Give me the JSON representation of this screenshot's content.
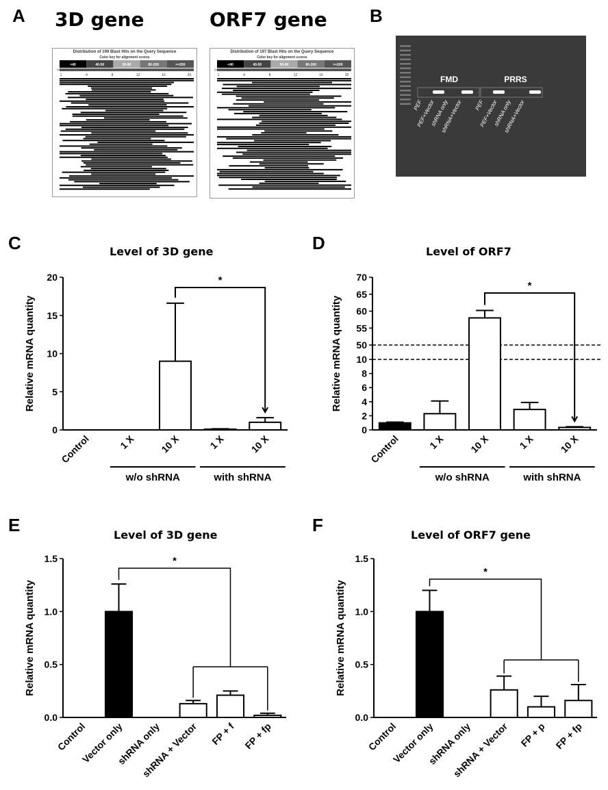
{
  "panels": {
    "A": {
      "letter": "A",
      "titles": [
        "3D gene",
        "ORF7 gene"
      ],
      "blast": [
        {
          "title": "Distribution of 199 Blast Hits on the Query Sequence",
          "key_label": "Color key for alignment scores",
          "score_bins": [
            "<40",
            "40-50",
            "50-80",
            "80-200",
            ">=200"
          ],
          "query_label": "Query",
          "axis_ticks": [
            "1",
            "4",
            "8",
            "12",
            "16",
            "20"
          ]
        },
        {
          "title": "Distribution of 197 Blast Hits on the Query Sequence",
          "key_label": "Color key for alignment scores",
          "score_bins": [
            "<40",
            "40-50",
            "50-80",
            "80-200",
            ">=200"
          ],
          "query_label": "Query",
          "axis_ticks": [
            "1",
            "4",
            "8",
            "12",
            "16",
            "20"
          ]
        }
      ]
    },
    "B": {
      "letter": "B",
      "group_labels": [
        "FMD",
        "PRRS"
      ],
      "lane_labels": [
        "PEF",
        "PEF+Vector",
        "shRNA only",
        "shRNA+Vector",
        "PEF",
        "PEF+Vector",
        "shRNA only",
        "shRNA+Vector"
      ]
    },
    "C": {
      "letter": "C"
    },
    "D": {
      "letter": "D"
    },
    "E": {
      "letter": "E"
    },
    "F": {
      "letter": "F"
    }
  },
  "chart_data": [
    {
      "id": "C",
      "type": "bar",
      "title": "Level of 3D gene",
      "ylabel": "Relative mRNA quantity",
      "categories": [
        "Control",
        "1 X",
        "10 X",
        "1 X",
        "10 X"
      ],
      "values": [
        0,
        0,
        9.0,
        0.1,
        1.0
      ],
      "errors": [
        0,
        0,
        7.6,
        0.05,
        0.6
      ],
      "fills": [
        "#ffffff",
        "#ffffff",
        "#ffffff",
        "#ffffff",
        "#ffffff"
      ],
      "ylim": [
        0,
        20
      ],
      "yticks": [
        "0",
        "5",
        "10",
        "15",
        "20"
      ],
      "groups": [
        {
          "label": "w/o shRNA",
          "from": 1,
          "to": 2
        },
        {
          "label": "with shRNA",
          "from": 3,
          "to": 4
        }
      ],
      "significance": {
        "from": 2,
        "to": 4,
        "label": "*"
      }
    },
    {
      "id": "D",
      "type": "bar",
      "title": "Level of ORF7",
      "ylabel": "Relative mRNA quantity",
      "categories": [
        "Control",
        "1 X",
        "10 X",
        "1 X",
        "10 X"
      ],
      "values": [
        1.0,
        2.3,
        58.0,
        2.9,
        0.35
      ],
      "errors": [
        0.1,
        1.8,
        2.2,
        1.0,
        0.1
      ],
      "fills": [
        "#000000",
        "#ffffff",
        "#ffffff",
        "#ffffff",
        "#ffffff"
      ],
      "axis_break": {
        "lower": [
          0,
          10
        ],
        "upper": [
          50,
          70
        ]
      },
      "yticks_lower": [
        "0",
        "2",
        "4",
        "6",
        "8",
        "10"
      ],
      "yticks_upper": [
        "50",
        "55",
        "60",
        "65",
        "70"
      ],
      "groups": [
        {
          "label": "w/o shRNA",
          "from": 1,
          "to": 2
        },
        {
          "label": "with shRNA",
          "from": 3,
          "to": 4
        }
      ],
      "significance": {
        "from": 2,
        "to": 4,
        "label": "*"
      }
    },
    {
      "id": "E",
      "type": "bar",
      "title": "Level of 3D gene",
      "ylabel": "Relative mRNA quantity",
      "categories": [
        "Control",
        "Vector only",
        "shRNA only",
        "shRNA + Vector",
        "FP + f",
        "FP + fp"
      ],
      "values": [
        0,
        1.0,
        0,
        0.13,
        0.21,
        0.02
      ],
      "errors": [
        0,
        0.26,
        0,
        0.03,
        0.04,
        0.02
      ],
      "fills": [
        "#ffffff",
        "#000000",
        "#ffffff",
        "#ffffff",
        "#ffffff",
        "#ffffff"
      ],
      "ylim": [
        0,
        1.5
      ],
      "yticks": [
        "0.0",
        "0.5",
        "1.0",
        "1.5"
      ],
      "significance_group": {
        "ref": 1,
        "from": 3,
        "to": 5,
        "label": "*"
      }
    },
    {
      "id": "F",
      "type": "bar",
      "title": "Level of ORF7 gene",
      "ylabel": "Relative mRNA quantity",
      "categories": [
        "Control",
        "Vector only",
        "shRNA only",
        "shRNA + Vector",
        "FP + p",
        "FP + fp"
      ],
      "values": [
        0,
        1.0,
        0,
        0.26,
        0.1,
        0.16
      ],
      "errors": [
        0,
        0.2,
        0,
        0.13,
        0.1,
        0.15
      ],
      "fills": [
        "#ffffff",
        "#000000",
        "#ffffff",
        "#ffffff",
        "#ffffff",
        "#ffffff"
      ],
      "ylim": [
        0,
        1.5
      ],
      "yticks": [
        "0.0",
        "0.5",
        "1.0",
        "1.5"
      ],
      "significance_group": {
        "ref": 1,
        "from": 3,
        "to": 5,
        "label": "*"
      }
    }
  ]
}
